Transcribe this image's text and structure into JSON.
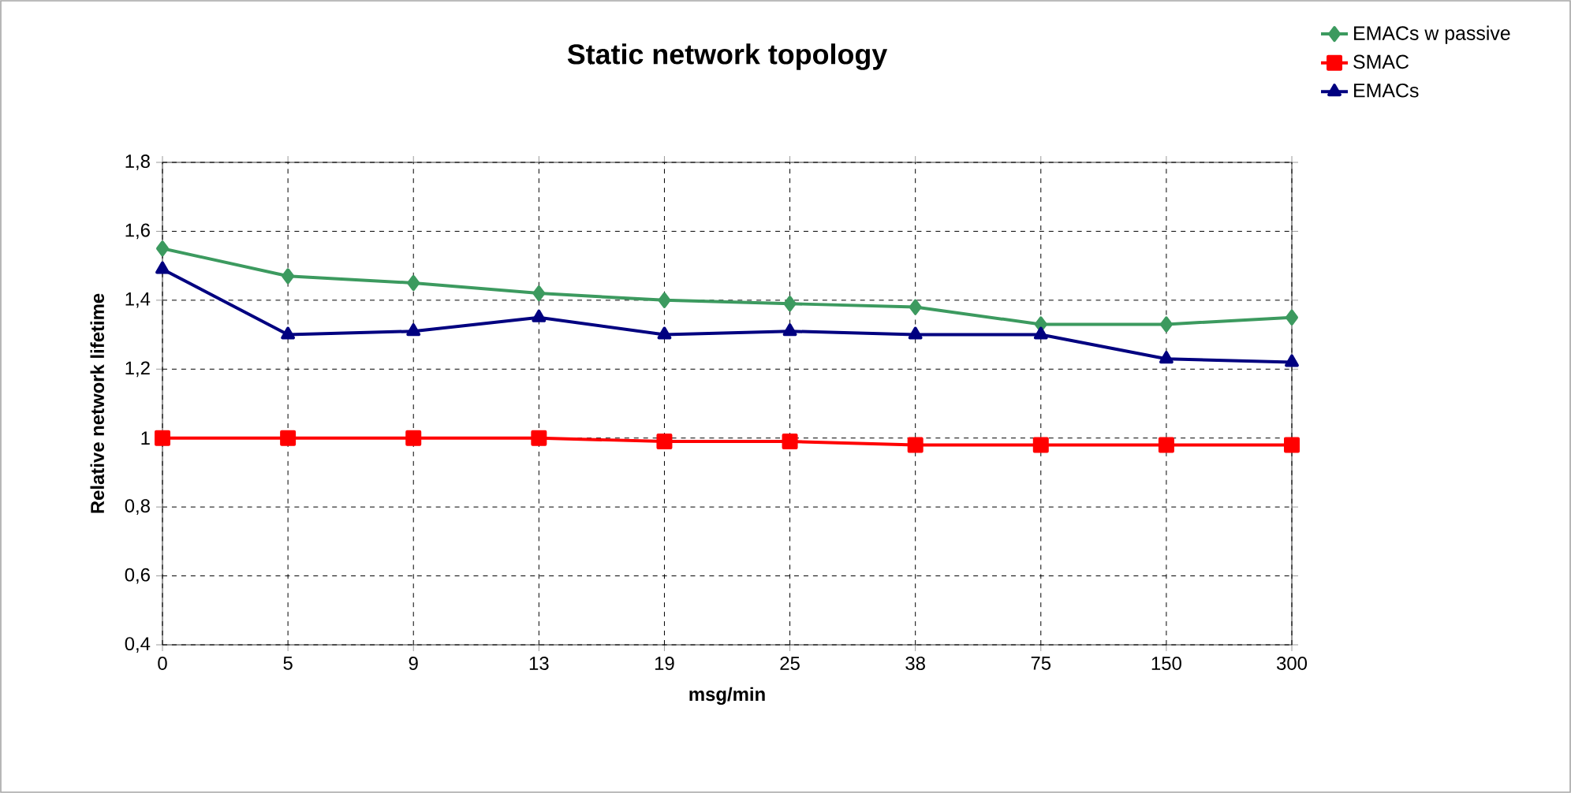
{
  "chart_data": {
    "type": "line",
    "title": "Static network topology",
    "xlabel": "msg/min",
    "ylabel": "Relative network lifetime",
    "categories": [
      "0",
      "5",
      "9",
      "13",
      "19",
      "25",
      "38",
      "75",
      "150",
      "300"
    ],
    "series": [
      {
        "name": "EMACs w passive",
        "color": "#3c9a5f",
        "marker": "diamond",
        "values": [
          1.55,
          1.47,
          1.45,
          1.42,
          1.4,
          1.39,
          1.38,
          1.33,
          1.33,
          1.35
        ]
      },
      {
        "name": "SMAC",
        "color": "#ff0000",
        "marker": "square",
        "values": [
          1.0,
          1.0,
          1.0,
          1.0,
          0.99,
          0.99,
          0.98,
          0.98,
          0.98,
          0.98
        ]
      },
      {
        "name": "EMACs",
        "color": "#000080",
        "marker": "triangle",
        "values": [
          1.49,
          1.3,
          1.31,
          1.35,
          1.3,
          1.31,
          1.3,
          1.3,
          1.23,
          1.22
        ]
      }
    ],
    "ylim": [
      0.4,
      1.8
    ],
    "yticks": [
      {
        "value": 0.4,
        "label": "0,4"
      },
      {
        "value": 0.6,
        "label": "0,6"
      },
      {
        "value": 0.8,
        "label": "0,8"
      },
      1,
      {
        "value": 1.2,
        "label": "1,2"
      },
      {
        "value": 1.4,
        "label": "1,4"
      },
      {
        "value": 1.6,
        "label": "1,6"
      },
      {
        "value": 1.8,
        "label": "1,8"
      }
    ],
    "grid": true,
    "legend": "top right",
    "line_style": "solid"
  }
}
